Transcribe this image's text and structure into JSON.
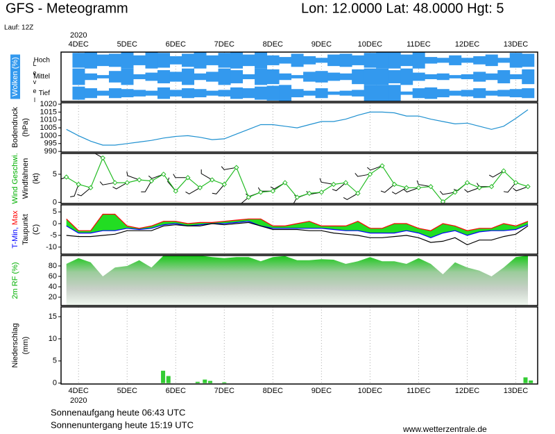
{
  "header": {
    "title": "GFS - Meteogramm",
    "location": "Lon: 12.0000 Lat: 48.0000 Hgt: 5",
    "run": "Lauf: 12Z",
    "sunrise": "Sonnenaufgang heute 06:43 UTC",
    "sunset": "Sonnenuntergang heute 15:19 UTC",
    "source": "www.wetterzentrale.de"
  },
  "time_axis": {
    "year": "2020",
    "xlim": [
      3.64,
      13.45
    ],
    "xticks": [
      {
        "value": 4,
        "label": "4DEC"
      },
      {
        "value": 5,
        "label": "5DEC"
      },
      {
        "value": 6,
        "label": "6DEC"
      },
      {
        "value": 7,
        "label": "7DEC"
      },
      {
        "value": 8,
        "label": "8DEC"
      },
      {
        "value": 9,
        "label": "9DEC"
      },
      {
        "value": 10,
        "label": "10DEC"
      },
      {
        "value": 11,
        "label": "11DEC"
      },
      {
        "value": 12,
        "label": "12DEC"
      },
      {
        "value": 13,
        "label": "13DEC"
      }
    ],
    "x": [
      3.75,
      4.0,
      4.25,
      4.5,
      4.75,
      5.0,
      5.25,
      5.5,
      5.75,
      6.0,
      6.25,
      6.5,
      6.75,
      7.0,
      7.25,
      7.5,
      7.75,
      8.0,
      8.25,
      8.5,
      8.75,
      9.0,
      9.25,
      9.5,
      9.75,
      10.0,
      10.25,
      10.5,
      10.75,
      11.0,
      11.25,
      11.5,
      11.75,
      12.0,
      12.25,
      12.5,
      12.75,
      13.0,
      13.25
    ]
  },
  "chart_data": [
    {
      "type": "band",
      "ylabel": [
        [
          {
            "text": "Wolken (%)",
            "color": "#ffffff",
            "background": "#3399ee"
          }
        ]
      ],
      "level_label": "Level",
      "color": "#3399ee",
      "levels": [
        {
          "name": "Hoch",
          "values": [
            0,
            90,
            100,
            70,
            80,
            100,
            60,
            100,
            90,
            50,
            80,
            100,
            60,
            90,
            100,
            70,
            100,
            60,
            40,
            80,
            50,
            30,
            70,
            80,
            60,
            90,
            100,
            100,
            70,
            100,
            40,
            30,
            60,
            30,
            50,
            70,
            30,
            90,
            80
          ]
        },
        {
          "name": "Mittel",
          "values": [
            0,
            100,
            40,
            20,
            70,
            100,
            30,
            50,
            80,
            60,
            100,
            40,
            60,
            100,
            80,
            30,
            100,
            90,
            40,
            20,
            60,
            70,
            50,
            40,
            90,
            100,
            100,
            80,
            100,
            50,
            30,
            40,
            20,
            30,
            60,
            40,
            80,
            30,
            90
          ]
        },
        {
          "name": "Tief",
          "values": [
            0,
            80,
            60,
            30,
            60,
            50,
            40,
            30,
            70,
            40,
            60,
            50,
            30,
            40,
            70,
            60,
            80,
            90,
            100,
            50,
            30,
            60,
            20,
            30,
            40,
            100,
            100,
            100,
            20,
            60,
            70,
            50,
            30,
            40,
            60,
            30,
            40,
            50,
            60
          ]
        }
      ]
    },
    {
      "type": "line",
      "ylabel": [
        [
          {
            "text": "Bodendruck",
            "color": "#000000"
          }
        ],
        [
          {
            "text": "(hPa)",
            "color": "#000000"
          }
        ]
      ],
      "ylim": [
        989.6,
        1020.9
      ],
      "yticks": [
        990,
        995,
        1000,
        1005,
        1010,
        1015,
        1020
      ],
      "series": [
        {
          "color": "#1e90d0",
          "values": [
            1004,
            1000,
            996.5,
            994,
            994,
            995,
            996,
            997,
            998.5,
            999.5,
            1000,
            999,
            997.5,
            998,
            1001,
            1004,
            1007,
            1007,
            1006,
            1005,
            1007,
            1009,
            1009,
            1010.5,
            1013,
            1015,
            1015,
            1014.5,
            1012.5,
            1012.5,
            1010.5,
            1009,
            1007.5,
            1008,
            1006,
            1004,
            1006,
            1011,
            1016.5
          ]
        }
      ]
    },
    {
      "type": "wind",
      "ylabel": [
        [
          {
            "text": "Wind Geschwi.",
            "color": "#00b000"
          }
        ],
        [
          {
            "text": "Windfahnen",
            "color": "#000000"
          }
        ],
        [
          {
            "text": "(kt)",
            "color": "#000000"
          }
        ]
      ],
      "ylim": [
        -0.2,
        8.7
      ],
      "yticks": [
        0,
        5
      ],
      "series": [
        {
          "color": "#22bb22",
          "values": [
            4.5,
            3.2,
            2.6,
            7.9,
            3.5,
            3.5,
            4,
            3.8,
            5,
            2,
            4.4,
            2.6,
            4,
            3.2,
            6.2,
            0.9,
            1.8,
            2,
            3.5,
            0.9,
            1.6,
            1.8,
            3.2,
            3.5,
            1.6,
            5,
            6.5,
            3.2,
            2.6,
            2.6,
            2.8,
            0.1,
            1.8,
            3.5,
            2.6,
            2.8,
            5.6,
            3.5,
            2.8
          ]
        }
      ],
      "directions": [
        250,
        200,
        230,
        300,
        260,
        240,
        290,
        210,
        250,
        320,
        270,
        240,
        300,
        220,
        260,
        230,
        250,
        270,
        240,
        210,
        250,
        260,
        280,
        230,
        240,
        260,
        250,
        230,
        240,
        250,
        280,
        200,
        260,
        230,
        250,
        270,
        240,
        220,
        250
      ],
      "barb_color": "#000000"
    },
    {
      "type": "range",
      "ylabel": [
        [
          {
            "text": "T-Min,",
            "color": "#0000ff"
          },
          {
            "text": " Max",
            "color": "#ff0000"
          }
        ],
        [
          {
            "text": "Taupunkt",
            "color": "#000000"
          }
        ],
        [
          {
            "text": "(C)",
            "color": "#000000"
          }
        ]
      ],
      "ylim": [
        -13,
        8
      ],
      "yticks": [
        5,
        0,
        -5,
        -10
      ],
      "fill": "#22dd22",
      "series": [
        {
          "color": "#0000ff",
          "values": [
            -1,
            -4,
            -4,
            -3,
            -3,
            -2,
            -2.5,
            -2,
            -0.5,
            0,
            -1,
            -0.5,
            0,
            0,
            0.5,
            1,
            -1,
            -2,
            -2,
            -2,
            -2,
            -2,
            -2.5,
            -3,
            -3,
            -4,
            -4,
            -4,
            -3,
            -4,
            -6,
            -4,
            -3,
            -5,
            -3.5,
            -3,
            -3,
            -2.5,
            -0.5
          ]
        },
        {
          "color": "#ff0000",
          "values": [
            2,
            -3,
            -3,
            4,
            4,
            -1,
            -2,
            -1,
            1,
            1,
            0,
            0.5,
            0.5,
            1,
            1.5,
            2,
            2,
            -1,
            -1,
            0,
            1,
            -1,
            -1,
            -1,
            1,
            -2,
            -2,
            0,
            0,
            -2,
            -3,
            0,
            -1,
            -3,
            -2,
            -2,
            0,
            -1,
            1
          ]
        },
        {
          "color": "#000000",
          "values": [
            -5,
            -5.5,
            -5.5,
            -5,
            -4.5,
            -3,
            -3,
            -3,
            -1,
            -0.5,
            -1,
            -1,
            0,
            -0.5,
            0,
            0.5,
            -1,
            -2.5,
            -2.5,
            -2.5,
            -3,
            -3,
            -4,
            -4.5,
            -5,
            -6,
            -6,
            -5.5,
            -5,
            -6,
            -8,
            -7.5,
            -6,
            -9,
            -7,
            -7,
            -5.5,
            -4.5,
            -1
          ]
        }
      ]
    },
    {
      "type": "area",
      "ylabel": [
        [
          {
            "text": "2m RF (%)",
            "color": "#00b000"
          }
        ]
      ],
      "ylim": [
        4,
        100
      ],
      "yticks": [
        80,
        60,
        40,
        20
      ],
      "colors": [
        "#18c818",
        "#9ccc9c",
        "#c8d0c8",
        "#f0f8f0"
      ],
      "series": [
        {
          "values": [
            84,
            95,
            87,
            60,
            77,
            80,
            91,
            77,
            100,
            100,
            100,
            100,
            97,
            95,
            97,
            97,
            89,
            97,
            99,
            91,
            91,
            93,
            92,
            84,
            89,
            97,
            89,
            89,
            84,
            95,
            84,
            64,
            87,
            77,
            71,
            60,
            77,
            97,
            100
          ]
        }
      ]
    },
    {
      "type": "bar",
      "ylabel": [
        [
          {
            "text": "Niederschlag",
            "color": "#000000"
          }
        ],
        [
          {
            "text": "(mm)",
            "color": "#000000"
          }
        ]
      ],
      "ylim": [
        -0.2,
        17.2
      ],
      "yticks": [
        0,
        5,
        10,
        15
      ],
      "color": "#33cc33",
      "x": [
        5.74,
        5.85,
        6.45,
        6.6,
        6.71,
        7.0,
        13.2,
        13.31
      ],
      "values": [
        2.8,
        1.6,
        0.3,
        0.8,
        0.5,
        0.2,
        1.3,
        0.6
      ]
    }
  ]
}
